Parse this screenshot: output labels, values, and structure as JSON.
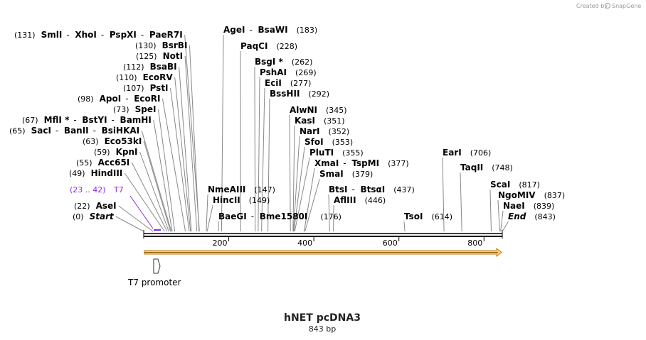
{
  "credit": {
    "prefix": "Created by",
    "brand": "SnapGene"
  },
  "map": {
    "title": "hNET pcDNA3",
    "length": "843 bp",
    "ticks": [
      {
        "label": "200",
        "bp": 200
      },
      {
        "label": "400",
        "bp": 400
      },
      {
        "label": "600",
        "bp": 600
      },
      {
        "label": "800",
        "bp": 800
      }
    ]
  },
  "feature": {
    "label": "T7 promoter"
  },
  "primer": {
    "range": "(23 .. 42)",
    "name": "T7"
  },
  "sites": [
    {
      "id": "smai-group",
      "bp": 131,
      "pos": "(131)",
      "names": [
        "SmlI",
        "XhoI",
        "PspXI",
        "PaeR7I"
      ]
    },
    {
      "id": "bsrbi",
      "bp": 130,
      "pos": "(130)",
      "names": [
        "BsrBI"
      ]
    },
    {
      "id": "noti",
      "bp": 125,
      "pos": "(125)",
      "names": [
        "NotI"
      ]
    },
    {
      "id": "bsabi",
      "bp": 112,
      "pos": "(112)",
      "names": [
        "BsaBI"
      ]
    },
    {
      "id": "ecorv",
      "bp": 110,
      "pos": "(110)",
      "names": [
        "EcoRV"
      ]
    },
    {
      "id": "psti",
      "bp": 107,
      "pos": "(107)",
      "names": [
        "PstI"
      ]
    },
    {
      "id": "apoi",
      "bp": 98,
      "pos": "(98)",
      "names": [
        "ApoI",
        "EcoRI"
      ]
    },
    {
      "id": "spei",
      "bp": 73,
      "pos": "(73)",
      "names": [
        "SpeI"
      ]
    },
    {
      "id": "mfli",
      "bp": 67,
      "pos": "(67)",
      "names": [
        "MflI *",
        "BstYI",
        "BamHI"
      ]
    },
    {
      "id": "saci",
      "bp": 65,
      "pos": "(65)",
      "names": [
        "SacI",
        "BanII",
        "BsiHKAI"
      ]
    },
    {
      "id": "eco53ki",
      "bp": 63,
      "pos": "(63)",
      "names": [
        "Eco53kI"
      ]
    },
    {
      "id": "kpni",
      "bp": 59,
      "pos": "(59)",
      "names": [
        "KpnI"
      ]
    },
    {
      "id": "acc65i",
      "bp": 55,
      "pos": "(55)",
      "names": [
        "Acc65I"
      ]
    },
    {
      "id": "hindiii",
      "bp": 49,
      "pos": "(49)",
      "names": [
        "HindIII"
      ]
    },
    {
      "id": "asei",
      "bp": 22,
      "pos": "(22)",
      "names": [
        "AseI"
      ]
    },
    {
      "id": "start",
      "bp": 0,
      "pos": "(0)",
      "names": [
        "Start"
      ]
    },
    {
      "id": "agei",
      "bp": 183,
      "pos": "(183)",
      "names": [
        "AgeI",
        "BsaWI"
      ]
    },
    {
      "id": "paqci",
      "bp": 228,
      "pos": "(228)",
      "names": [
        "PaqCI"
      ]
    },
    {
      "id": "bsgi",
      "bp": 262,
      "pos": "(262)",
      "names": [
        "BsgI *"
      ]
    },
    {
      "id": "pshai",
      "bp": 269,
      "pos": "(269)",
      "names": [
        "PshAI"
      ]
    },
    {
      "id": "ecii",
      "bp": 277,
      "pos": "(277)",
      "names": [
        "EciI"
      ]
    },
    {
      "id": "bsshii",
      "bp": 292,
      "pos": "(292)",
      "names": [
        "BssHII"
      ]
    },
    {
      "id": "alwni",
      "bp": 345,
      "pos": "(345)",
      "names": [
        "AlwNI"
      ]
    },
    {
      "id": "kasi",
      "bp": 351,
      "pos": "(351)",
      "names": [
        "KasI"
      ]
    },
    {
      "id": "nari",
      "bp": 352,
      "pos": "(352)",
      "names": [
        "NarI"
      ]
    },
    {
      "id": "sfoi",
      "bp": 353,
      "pos": "(353)",
      "names": [
        "SfoI"
      ]
    },
    {
      "id": "pluti",
      "bp": 355,
      "pos": "(355)",
      "names": [
        "PluTI"
      ]
    },
    {
      "id": "xmai",
      "bp": 377,
      "pos": "(377)",
      "names": [
        "XmaI",
        "TspMI"
      ]
    },
    {
      "id": "smai",
      "bp": 379,
      "pos": "(379)",
      "names": [
        "SmaI"
      ]
    },
    {
      "id": "nmeaiii",
      "bp": 147,
      "pos": "(147)",
      "names": [
        "NmeAIII"
      ]
    },
    {
      "id": "hincii",
      "bp": 149,
      "pos": "(149)",
      "names": [
        "HincII"
      ]
    },
    {
      "id": "baegi",
      "bp": 176,
      "pos": "(176)",
      "names": [
        "BaeGI",
        "Bme1580I"
      ]
    },
    {
      "id": "btsi",
      "bp": 437,
      "pos": "(437)",
      "names": [
        "BtsI",
        "BtsαI"
      ]
    },
    {
      "id": "afliii",
      "bp": 446,
      "pos": "(446)",
      "names": [
        "AflIII"
      ]
    },
    {
      "id": "tsoi",
      "bp": 614,
      "pos": "(614)",
      "names": [
        "TsoI"
      ]
    },
    {
      "id": "eari",
      "bp": 706,
      "pos": "(706)",
      "names": [
        "EarI"
      ]
    },
    {
      "id": "taqii",
      "bp": 748,
      "pos": "(748)",
      "names": [
        "TaqII"
      ]
    },
    {
      "id": "scai",
      "bp": 817,
      "pos": "(817)",
      "names": [
        "ScaI"
      ]
    },
    {
      "id": "ngomiv",
      "bp": 837,
      "pos": "(837)",
      "names": [
        "NgoMIV"
      ]
    },
    {
      "id": "naei",
      "bp": 839,
      "pos": "(839)",
      "names": [
        "NaeI"
      ]
    },
    {
      "id": "end",
      "bp": 843,
      "pos": "(843)",
      "names": [
        "End"
      ]
    }
  ],
  "colors": {
    "feature_arrow": "#f5a623",
    "primer": "#8a2be2",
    "backbone": "#000000"
  }
}
